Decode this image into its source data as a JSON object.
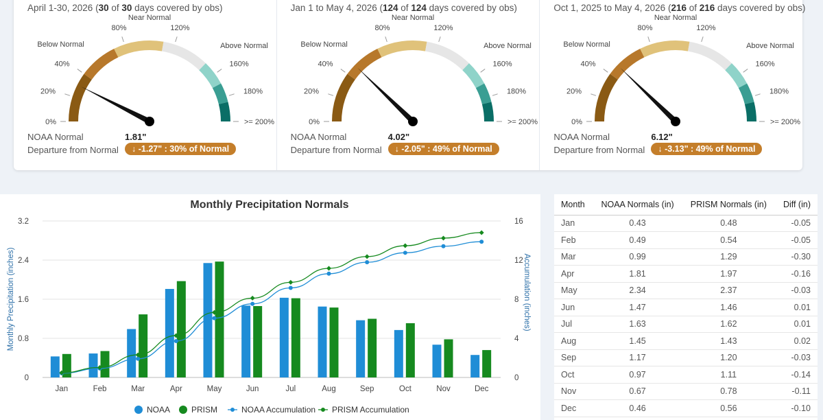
{
  "gauges": [
    {
      "period": "April 1-30, 2026",
      "covered": "30",
      "total": "30",
      "covered_suffix": " days covered by obs",
      "percent_of_normal": 30,
      "normal_label": "NOAA Normal",
      "normal_value": "1.81\"",
      "departure_label": "Departure from Normal",
      "departure_text": "-1.27\" : 30% of Normal",
      "departure_arrow": "↓"
    },
    {
      "period": "Jan 1 to May 4, 2026",
      "covered": "124",
      "total": "124",
      "covered_suffix": " days covered by obs",
      "percent_of_normal": 49,
      "normal_label": "NOAA Normal",
      "normal_value": "4.02\"",
      "departure_label": "Departure from Normal",
      "departure_text": "-2.05\" : 49% of Normal",
      "departure_arrow": "↓"
    },
    {
      "period": "Oct 1, 2025 to May 4, 2026",
      "covered": "216",
      "total": "216",
      "covered_suffix": " days covered by obs",
      "percent_of_normal": 49,
      "normal_label": "NOAA Normal",
      "normal_value": "6.12\"",
      "departure_label": "Departure from Normal",
      "departure_text": "-3.13\" : 49% of Normal",
      "departure_arrow": "↓"
    }
  ],
  "gauge_scale": {
    "ticks": [
      "0%",
      "20%",
      "40%",
      "80%",
      "120%",
      "160%",
      "180%",
      ">= 200%"
    ],
    "zones": [
      "Below Normal",
      "Near Normal",
      "Above Normal"
    ],
    "colors": [
      "#8a5a14",
      "#b7782b",
      "#e0c27a",
      "#e6e6e6",
      "#8fd3c9",
      "#3a9e93",
      "#0a6e66"
    ]
  },
  "chart_data": {
    "type": "bar",
    "title": "Monthly Precipitation Normals",
    "categories": [
      "Jan",
      "Feb",
      "Mar",
      "Apr",
      "May",
      "Jun",
      "Jul",
      "Aug",
      "Sep",
      "Oct",
      "Nov",
      "Dec"
    ],
    "series": [
      {
        "name": "NOAA",
        "type": "bar",
        "axis": "left",
        "color": "#1f8dd6",
        "values": [
          0.43,
          0.49,
          0.99,
          1.81,
          2.34,
          1.47,
          1.63,
          1.45,
          1.17,
          0.97,
          0.67,
          0.46
        ]
      },
      {
        "name": "PRISM",
        "type": "bar",
        "axis": "left",
        "color": "#168a1f",
        "values": [
          0.48,
          0.54,
          1.29,
          1.97,
          2.37,
          1.46,
          1.62,
          1.43,
          1.2,
          1.11,
          0.78,
          0.56
        ]
      },
      {
        "name": "NOAA Accumulation",
        "type": "line",
        "axis": "right",
        "color": "#1f8dd6",
        "values": [
          0.43,
          0.92,
          1.91,
          3.72,
          6.06,
          7.53,
          9.16,
          10.61,
          11.78,
          12.75,
          13.42,
          13.88
        ]
      },
      {
        "name": "PRISM Accumulation",
        "type": "line",
        "axis": "right",
        "color": "#168a1f",
        "values": [
          0.48,
          1.02,
          2.31,
          4.28,
          6.65,
          8.11,
          9.73,
          11.16,
          12.36,
          13.47,
          14.25,
          14.81
        ]
      }
    ],
    "ylabel": "Monthly Precipitation (inches)",
    "ylabel_right": "Accumulation (inches)",
    "ylim": [
      0,
      3.2
    ],
    "ylim_right": [
      0,
      16
    ],
    "yticks": [
      "0",
      "0.8",
      "1.6",
      "2.4",
      "3.2"
    ],
    "yticks_right": [
      "0",
      "4",
      "8",
      "12",
      "16"
    ],
    "legend": "bottom",
    "grid": true
  },
  "table": {
    "headers": [
      "Month",
      "NOAA Normals (in)",
      "PRISM Normals (in)",
      "Diff (in)"
    ],
    "rows": [
      [
        "Jan",
        "0.43",
        "0.48",
        "-0.05"
      ],
      [
        "Feb",
        "0.49",
        "0.54",
        "-0.05"
      ],
      [
        "Mar",
        "0.99",
        "1.29",
        "-0.30"
      ],
      [
        "Apr",
        "1.81",
        "1.97",
        "-0.16"
      ],
      [
        "May",
        "2.34",
        "2.37",
        "-0.03"
      ],
      [
        "Jun",
        "1.47",
        "1.46",
        "0.01"
      ],
      [
        "Jul",
        "1.63",
        "1.62",
        "0.01"
      ],
      [
        "Aug",
        "1.45",
        "1.43",
        "0.02"
      ],
      [
        "Sep",
        "1.17",
        "1.20",
        "-0.03"
      ],
      [
        "Oct",
        "0.97",
        "1.11",
        "-0.14"
      ],
      [
        "Nov",
        "0.67",
        "0.78",
        "-0.11"
      ],
      [
        "Dec",
        "0.46",
        "0.56",
        "-0.10"
      ]
    ]
  }
}
